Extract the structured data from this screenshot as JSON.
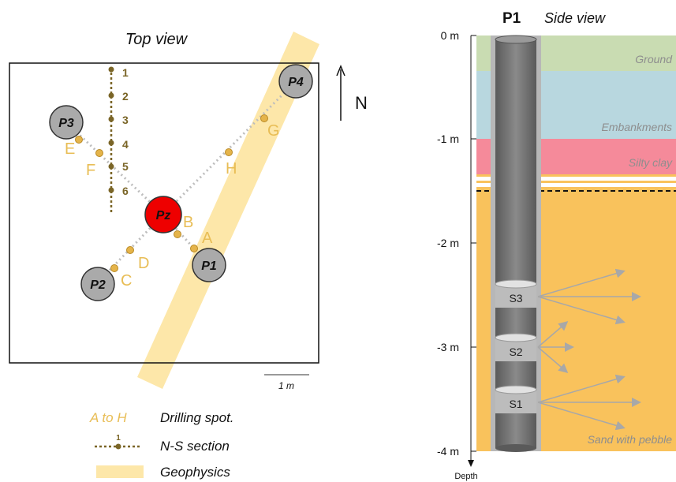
{
  "top_view": {
    "title": "Top view",
    "north_label": "N",
    "scale_label": "1 m",
    "ns_section_points": [
      "1",
      "2",
      "3",
      "4",
      "5",
      "6"
    ],
    "piezometers": [
      {
        "id": "P3",
        "color": "#aaaaaa"
      },
      {
        "id": "P4",
        "color": "#aaaaaa"
      },
      {
        "id": "Pz",
        "color": "#ee0000"
      },
      {
        "id": "P1",
        "color": "#aaaaaa"
      },
      {
        "id": "P2",
        "color": "#aaaaaa"
      }
    ],
    "drilling_spots": [
      "A",
      "B",
      "C",
      "D",
      "E",
      "F",
      "G",
      "H"
    ],
    "legend": [
      {
        "key": "A to H",
        "label": "Drilling spot."
      },
      {
        "key": "1",
        "label": "N-S section"
      },
      {
        "key": "",
        "label": "Geophysics"
      }
    ]
  },
  "side_view": {
    "well_label": "P1",
    "title": "Side view",
    "depth_ticks": [
      "0 m",
      "-1 m",
      "-2 m",
      "-3 m",
      "-4 m"
    ],
    "depth_axis_label": "Depth",
    "layers": [
      {
        "name": "Ground",
        "color": "#c9dcb2"
      },
      {
        "name": "Embankments",
        "color": "#b8d7df"
      },
      {
        "name": "Silty clay",
        "color": "#f58a9a"
      },
      {
        "name": "Sand with pebble",
        "color": "#f9c25c"
      }
    ],
    "sensors": [
      "S3",
      "S2",
      "S1"
    ]
  },
  "colors": {
    "drill": "#e5b44a",
    "ns_section": "#7a6527",
    "geophysics": "#fde7a9",
    "well": "#6f6f6f",
    "casing": "#b7b7b7"
  }
}
